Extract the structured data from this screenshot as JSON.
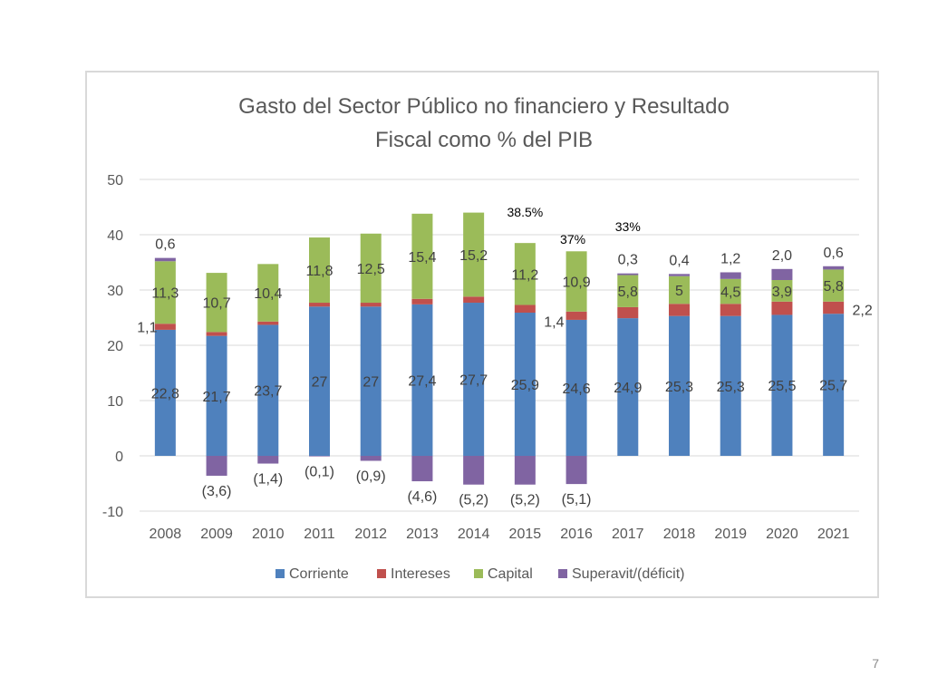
{
  "slide": {
    "number": "7"
  },
  "chart_data": {
    "type": "bar",
    "stacked": true,
    "title": "Gasto del Sector Público no financiero y Resultado Fiscal como % del PIB",
    "title_lines": [
      "Gasto del Sector Público no financiero y Resultado",
      "Fiscal como % del PIB"
    ],
    "xlabel": "",
    "ylabel": "",
    "ylim": [
      -10,
      50
    ],
    "yticks": [
      "-10",
      "0",
      "10",
      "20",
      "30",
      "40",
      "50"
    ],
    "ytick_values": [
      -10,
      0,
      10,
      20,
      30,
      40,
      50
    ],
    "grid": true,
    "legend_position": "bottom",
    "categories": [
      "2008",
      "2009",
      "2010",
      "2011",
      "2012",
      "2013",
      "2014",
      "2015",
      "2016",
      "2017",
      "2018",
      "2019",
      "2020",
      "2021"
    ],
    "series": [
      {
        "name": "Corriente",
        "color": "#4f81bd",
        "values": [
          22.8,
          21.7,
          23.7,
          27,
          27,
          27.4,
          27.7,
          25.9,
          24.6,
          24.9,
          25.3,
          25.3,
          25.5,
          25.7
        ],
        "labels": [
          "22,8",
          "21,7",
          "23,7",
          "27",
          "27",
          "27,4",
          "27,7",
          "25,9",
          "24,6",
          "24,9",
          "25,3",
          "25,3",
          "25,5",
          "25,7"
        ]
      },
      {
        "name": "Intereses",
        "color": "#c0504d",
        "values": [
          1.1,
          0.7,
          0.6,
          0.7,
          0.7,
          1.0,
          1.1,
          1.4,
          1.5,
          2.0,
          2.2,
          2.2,
          2.4,
          2.2
        ],
        "labels": [
          "1,1",
          "",
          "",
          "",
          "",
          "",
          "",
          "1,4",
          "",
          "",
          "",
          "",
          "",
          "2,2"
        ]
      },
      {
        "name": "Capital",
        "color": "#9bbb59",
        "values": [
          11.3,
          10.7,
          10.4,
          11.8,
          12.5,
          15.4,
          15.2,
          11.2,
          10.9,
          5.8,
          5,
          4.5,
          3.9,
          5.8
        ],
        "labels": [
          "11,3",
          "10,7",
          "10,4",
          "11,8",
          "12,5",
          "15,4",
          "15,2",
          "11,2",
          "10,9",
          "5,8",
          "5",
          "4,5",
          "3,9",
          "5,8"
        ]
      },
      {
        "name": "Superavit/(déficit)",
        "color": "#8064a2",
        "values": [
          0.6,
          -3.6,
          -1.4,
          -0.1,
          -0.9,
          -4.6,
          -5.2,
          -5.2,
          -5.1,
          0.3,
          0.4,
          1.2,
          2.0,
          0.6
        ],
        "labels": [
          "0,6",
          "(3,6)",
          "(1,4)",
          "(0,1)",
          "(0,9)",
          "(4,6)",
          "(5,2)",
          "(5,2)",
          "(5,1)",
          "0,3",
          "0,4",
          "1,2",
          "2,0",
          "0,6"
        ]
      }
    ],
    "annotations": [
      {
        "category": "2015",
        "text": "38.5%"
      },
      {
        "category": "2016",
        "text": "37%"
      },
      {
        "category": "2017",
        "text": "33%"
      }
    ]
  }
}
